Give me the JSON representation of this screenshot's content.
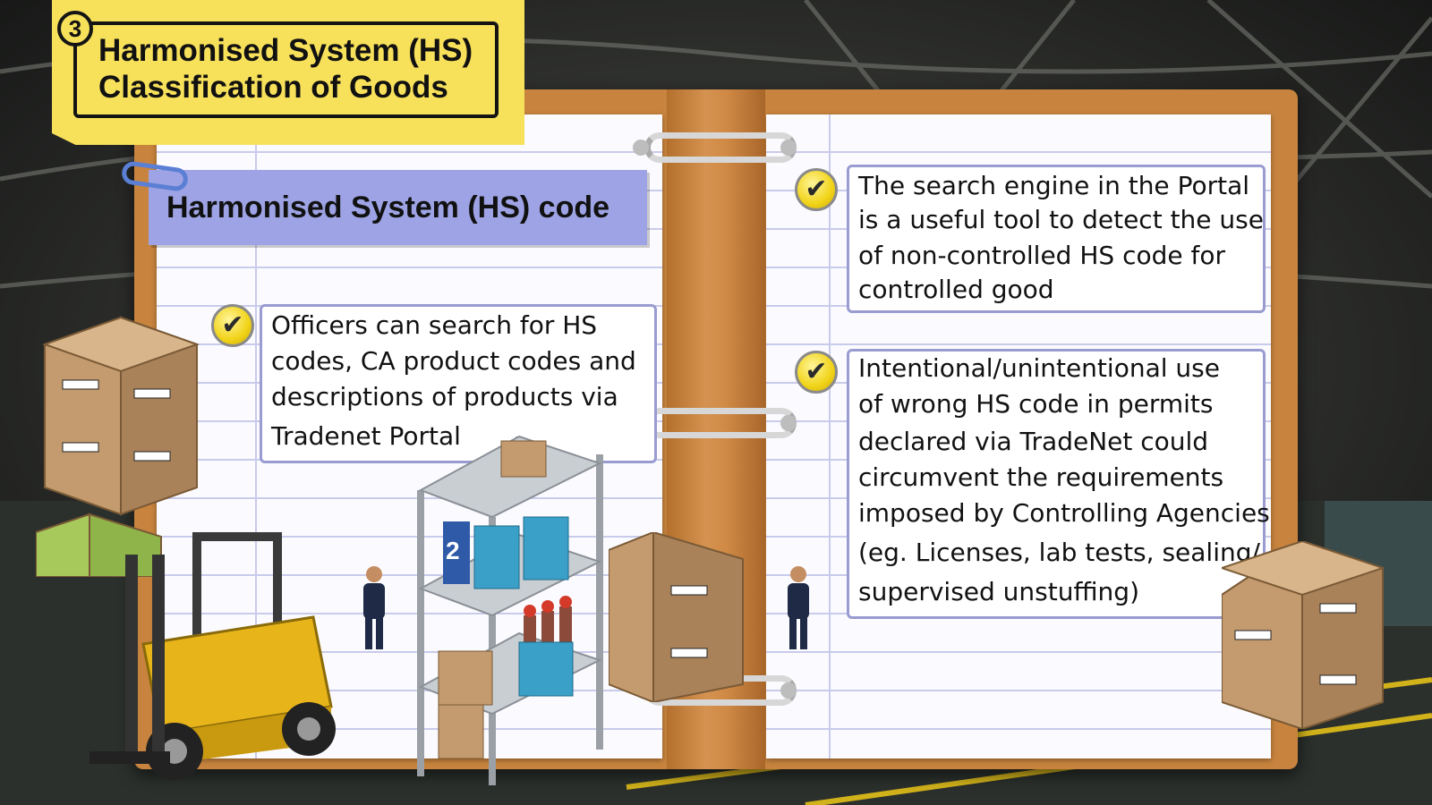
{
  "header": {
    "step_number": "3",
    "title_line1": "Harmonised System (HS)",
    "title_line2": "Classification of Goods"
  },
  "section": {
    "subtitle": "Harmonised System (HS) code"
  },
  "left_note": {
    "lines": [
      "Officers can search for HS",
      "codes, CA product codes and",
      "descriptions of products via",
      "Tradenet Portal"
    ]
  },
  "right_note_1": {
    "lines": [
      "The search engine in the Portal",
      "is a useful tool to detect the use",
      "of non-controlled  HS code for",
      "controlled good"
    ]
  },
  "right_note_2": {
    "lines": [
      "Intentional/unintentional use",
      "of wrong HS code in permits",
      "declared via TradeNet could",
      "circumvent the requirements",
      "imposed by Controlling Agencies",
      "(eg. Licenses, lab tests,  sealing/",
      "supervised unstuffing)"
    ]
  },
  "shelf_sign": "2",
  "colors": {
    "title_note": "#f7e05a",
    "subtitle_band": "#9da3e4",
    "binder": "#c8843e",
    "check": "#f1d317",
    "box_border": "#9a9bd0"
  }
}
